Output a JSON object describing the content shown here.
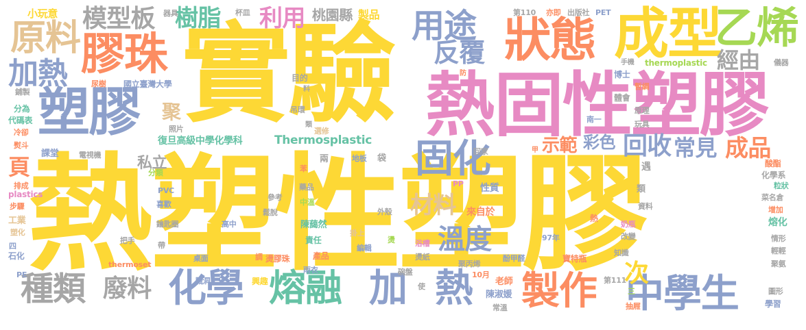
{
  "words": [
    {
      "text": "熱塑性塑膠",
      "color": "#fdd835"
    },
    {
      "text": "實驗",
      "color": "#fdd835"
    },
    {
      "text": "熱固性塑膠",
      "color": "#e78ac3"
    },
    {
      "text": "塑膠",
      "color": "#8da0cb"
    },
    {
      "text": "成型",
      "color": "#fdd835"
    },
    {
      "text": "乙烯",
      "color": "#a6d854"
    },
    {
      "text": "狀態",
      "color": "#fc8d62"
    },
    {
      "text": "膠珠",
      "color": "#fc8d62"
    },
    {
      "text": "原料",
      "color": "#e5c494"
    },
    {
      "text": "模型板",
      "color": "#a6a6a6"
    },
    {
      "text": "樹脂",
      "color": "#66c2a5"
    },
    {
      "text": "利用",
      "color": "#e78ac3"
    },
    {
      "text": "用途",
      "color": "#8da0cb"
    },
    {
      "text": "反覆",
      "color": "#8da0cb"
    },
    {
      "text": "加熱",
      "color": "#8da0cb"
    },
    {
      "text": "經由",
      "color": "#a6a6a6"
    },
    {
      "text": "固化",
      "color": "#8da0cb"
    },
    {
      "text": "回收",
      "color": "#8da0cb"
    },
    {
      "text": "常見",
      "color": "#8da0cb"
    },
    {
      "text": "成品",
      "color": "#fc8d62"
    },
    {
      "text": "溫度",
      "color": "#8da0cb"
    },
    {
      "text": "材料",
      "color": "#e5c494"
    },
    {
      "text": "種類",
      "color": "#a6a6a6"
    },
    {
      "text": "廢料",
      "color": "#a6a6a6"
    },
    {
      "text": "化學",
      "color": "#8da0cb"
    },
    {
      "text": "熔融",
      "color": "#66c2a5"
    },
    {
      "text": "加",
      "color": "#8da0cb"
    },
    {
      "text": "熱",
      "color": "#8da0cb"
    },
    {
      "text": "製作",
      "color": "#fc8d62"
    },
    {
      "text": "中學生",
      "color": "#8da0cb"
    },
    {
      "text": "次",
      "color": "#fdd835"
    },
    {
      "text": "示範",
      "color": "#fc8d62"
    },
    {
      "text": "彩色",
      "color": "#8da0cb"
    },
    {
      "text": "頁",
      "color": "#fc8d62"
    },
    {
      "text": "聚",
      "color": "#e5c494"
    },
    {
      "text": "私立",
      "color": "#a6a6a6"
    },
    {
      "text": "復旦高級中學化學科",
      "color": "#66c2a5"
    },
    {
      "text": "Thermosplastic",
      "color": "#66c2a5"
    },
    {
      "text": "桃園縣",
      "color": "#a6a6a6"
    },
    {
      "text": "製品",
      "color": "#fdd835"
    },
    {
      "text": "小玩意",
      "color": "#fdd835"
    },
    {
      "text": "器具",
      "color": "#a6a6a6"
    },
    {
      "text": "杯皿",
      "color": "#a6a6a6"
    },
    {
      "text": "第110",
      "color": "#a6a6a6"
    },
    {
      "text": "亦即",
      "color": "#fc8d62"
    },
    {
      "text": "出版社",
      "color": "#a6a6a6"
    },
    {
      "text": "PET",
      "color": "#8da0cb"
    },
    {
      "text": "國立臺灣大學",
      "color": "#8da0cb"
    },
    {
      "text": "尿樹",
      "color": "#fc8d62"
    },
    {
      "text": "目的",
      "color": "#a6a6a6"
    },
    {
      "text": "手機",
      "color": "#a6a6a6"
    },
    {
      "text": "thermoplastic",
      "color": "#a6d854"
    },
    {
      "text": "儀器",
      "color": "#a6a6a6"
    },
    {
      "text": "博士",
      "color": "#8da0cb"
    },
    {
      "text": "暫綢",
      "color": "#fc8d62"
    },
    {
      "text": "體會",
      "color": "#a6a6a6"
    },
    {
      "text": "原理",
      "color": "#a6a6a6"
    },
    {
      "text": "玩具",
      "color": "#a6a6a6"
    },
    {
      "text": "南一",
      "color": "#8da0cb"
    },
    {
      "text": "吊環",
      "color": "#a6a6a6"
    },
    {
      "text": "照片",
      "color": "#a6a6a6"
    },
    {
      "text": "選修",
      "color": "#e5c494"
    },
    {
      "text": "回家",
      "color": "#a6a6a6"
    },
    {
      "text": "鋪製",
      "color": "#a6a6a6"
    },
    {
      "text": "分為",
      "color": "#66c2a5"
    },
    {
      "text": "代碼表",
      "color": "#66c2a5"
    },
    {
      "text": "冷卻",
      "color": "#fc8d62"
    },
    {
      "text": "熨斗",
      "color": "#fc8d62"
    },
    {
      "text": "課堂",
      "color": "#8da0cb"
    },
    {
      "text": "電視機",
      "color": "#a6a6a6"
    },
    {
      "text": "分類",
      "color": "#a6d854"
    },
    {
      "text": "地板",
      "color": "#8da0cb"
    },
    {
      "text": "袋",
      "color": "#a6a6a6"
    },
    {
      "text": "兩",
      "color": "#a6a6a6"
    },
    {
      "text": "苯",
      "color": "#fc8d62"
    },
    {
      "text": "PP",
      "color": "#e78ac3"
    },
    {
      "text": "性質",
      "color": "#8da0cb"
    },
    {
      "text": "遇",
      "color": "#a6a6a6"
    },
    {
      "text": "類",
      "color": "#a6a6a6"
    },
    {
      "text": "酸酯",
      "color": "#fc8d62"
    },
    {
      "text": "化學系",
      "color": "#a6a6a6"
    },
    {
      "text": "粒狀",
      "color": "#66c2a5"
    },
    {
      "text": "菜名倉",
      "color": "#a6a6a6"
    },
    {
      "text": "PVC",
      "color": "#8da0cb"
    },
    {
      "text": "排成",
      "color": "#fc8d62"
    },
    {
      "text": "plastics",
      "color": "#e78ac3"
    },
    {
      "text": "步驟",
      "color": "#fc8d62"
    },
    {
      "text": "喜歡",
      "color": "#8da0cb"
    },
    {
      "text": "參考",
      "color": "#a6a6a6"
    },
    {
      "text": "藥品",
      "color": "#a6a6a6"
    },
    {
      "text": "中溫",
      "color": "#a6d854"
    },
    {
      "text": "外殼",
      "color": "#a6a6a6"
    },
    {
      "text": "來自於",
      "color": "#fc8d62"
    },
    {
      "text": "資料",
      "color": "#a6a6a6"
    },
    {
      "text": "增加",
      "color": "#fc8d62"
    },
    {
      "text": "工業",
      "color": "#e5c494"
    },
    {
      "text": "塑化",
      "color": "#e5c494"
    },
    {
      "text": "鑰匙圈",
      "color": "#a6a6a6"
    },
    {
      "text": "高中",
      "color": "#8da0cb"
    },
    {
      "text": "鬆脫",
      "color": "#a6a6a6"
    },
    {
      "text": "陳藹然",
      "color": "#66c2a5"
    },
    {
      "text": "責任",
      "color": "#66c2a5"
    },
    {
      "text": "掛上",
      "color": "#e5c494"
    },
    {
      "text": "熱",
      "color": "#fc8d62"
    },
    {
      "text": "奶瓶",
      "color": "#e78ac3"
    },
    {
      "text": "熔化",
      "color": "#66c2a5"
    },
    {
      "text": "情形",
      "color": "#a6a6a6"
    },
    {
      "text": "四",
      "color": "#8da0cb"
    },
    {
      "text": "石化",
      "color": "#8da0cb"
    },
    {
      "text": "把手",
      "color": "#a6a6a6"
    },
    {
      "text": "帶",
      "color": "#a6a6a6"
    },
    {
      "text": "編輯",
      "color": "#8da0cb"
    },
    {
      "text": "燙",
      "color": "#a6d854"
    },
    {
      "text": "97年",
      "color": "#8da0cb"
    },
    {
      "text": "改變",
      "color": "#a6a6a6"
    },
    {
      "text": "輕輕",
      "color": "#a6a6a6"
    },
    {
      "text": "產品",
      "color": "#fc8d62"
    },
    {
      "text": "浴槽",
      "color": "#e78ac3"
    },
    {
      "text": "知識",
      "color": "#a6a6a6"
    },
    {
      "text": "桌面",
      "color": "#8da0cb"
    },
    {
      "text": "調",
      "color": "#fc8d62"
    },
    {
      "text": "燙膠珠",
      "color": "#fc8d62"
    },
    {
      "text": "燙紙",
      "color": "#a6a6a6"
    },
    {
      "text": "聚丙烯",
      "color": "#a6a6a6"
    },
    {
      "text": "酚甲醛",
      "color": "#8da0cb"
    },
    {
      "text": "寶特瓶",
      "color": "#fc8d62"
    },
    {
      "text": "聚氨",
      "color": "#a6a6a6"
    },
    {
      "text": "PE",
      "color": "#8da0cb"
    },
    {
      "text": "thermoset",
      "color": "#fc8d62"
    },
    {
      "text": "雨衣",
      "color": "#8da0cb"
    },
    {
      "text": "戰洞",
      "color": "#8da0cb"
    },
    {
      "text": "興趣",
      "color": "#fdd835"
    },
    {
      "text": "碗盤",
      "color": "#a6a6a6"
    },
    {
      "text": "10月",
      "color": "#fc8d62"
    },
    {
      "text": "使",
      "color": "#a6a6a6"
    },
    {
      "text": "老師",
      "color": "#fc8d62"
    },
    {
      "text": "陳淑媛",
      "color": "#8da0cb"
    },
    {
      "text": "第111",
      "color": "#a6a6a6"
    },
    {
      "text": "三",
      "color": "#a6d854"
    },
    {
      "text": "圖形",
      "color": "#a6a6a6"
    },
    {
      "text": "學習",
      "color": "#8da0cb"
    },
    {
      "text": "常溫",
      "color": "#a6a6a6"
    },
    {
      "text": "抽屜",
      "color": "#fc8d62"
    },
    {
      "text": "料",
      "color": "#a6a6a6"
    },
    {
      "text": "防",
      "color": "#fc8d62"
    },
    {
      "text": "類",
      "color": "#a6a6a6"
    },
    {
      "text": "甲",
      "color": "#fc8d62"
    }
  ]
}
